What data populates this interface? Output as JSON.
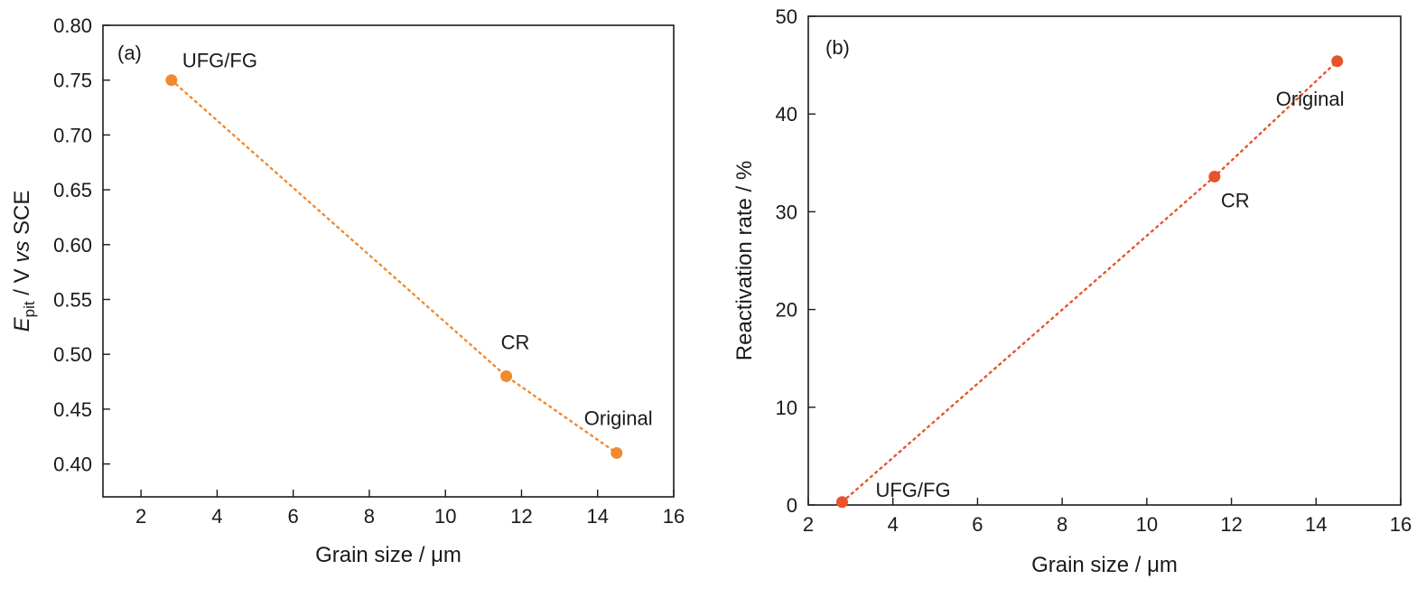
{
  "chart_data": [
    {
      "type": "scatter",
      "panel_label": "(a)",
      "xlabel": "Grain size / μm",
      "ylabel": {
        "main": "E",
        "sub": "pit",
        "middle": " / V ",
        "italic": "vs",
        "tail": " SCE"
      },
      "xlim": [
        1,
        16
      ],
      "ylim": [
        0.37,
        0.8
      ],
      "xticks": [
        2,
        4,
        6,
        8,
        10,
        12,
        14,
        16
      ],
      "yticks": [
        0.4,
        0.45,
        0.5,
        0.55,
        0.6,
        0.65,
        0.7,
        0.75,
        0.8
      ],
      "ytick_labels": [
        "0.40",
        "0.45",
        "0.50",
        "0.55",
        "0.60",
        "0.65",
        "0.70",
        "0.75",
        "0.80"
      ],
      "color": "#f08a30",
      "fit_line": "dotted",
      "grid": false,
      "points": [
        {
          "x": 2.8,
          "y": 0.75,
          "label": "UFG/FG"
        },
        {
          "x": 11.6,
          "y": 0.48,
          "label": "CR"
        },
        {
          "x": 14.5,
          "y": 0.41,
          "label": "Original"
        }
      ]
    },
    {
      "type": "scatter",
      "panel_label": "(b)",
      "xlabel": "Grain size / μm",
      "ylabel": "Reactivation rate / %",
      "xlim": [
        2,
        16
      ],
      "ylim": [
        0,
        50
      ],
      "xticks": [
        2,
        4,
        6,
        8,
        10,
        12,
        14,
        16
      ],
      "yticks": [
        0,
        10,
        20,
        30,
        40,
        50
      ],
      "ytick_labels": [
        "0",
        "10",
        "20",
        "30",
        "40",
        "50"
      ],
      "color": "#e8532b",
      "fit_line": "dotted",
      "grid": false,
      "points": [
        {
          "x": 2.8,
          "y": 0.3,
          "label": "UFG/FG"
        },
        {
          "x": 11.6,
          "y": 33.6,
          "label": "CR"
        },
        {
          "x": 14.5,
          "y": 45.4,
          "label": "Original"
        }
      ]
    }
  ]
}
